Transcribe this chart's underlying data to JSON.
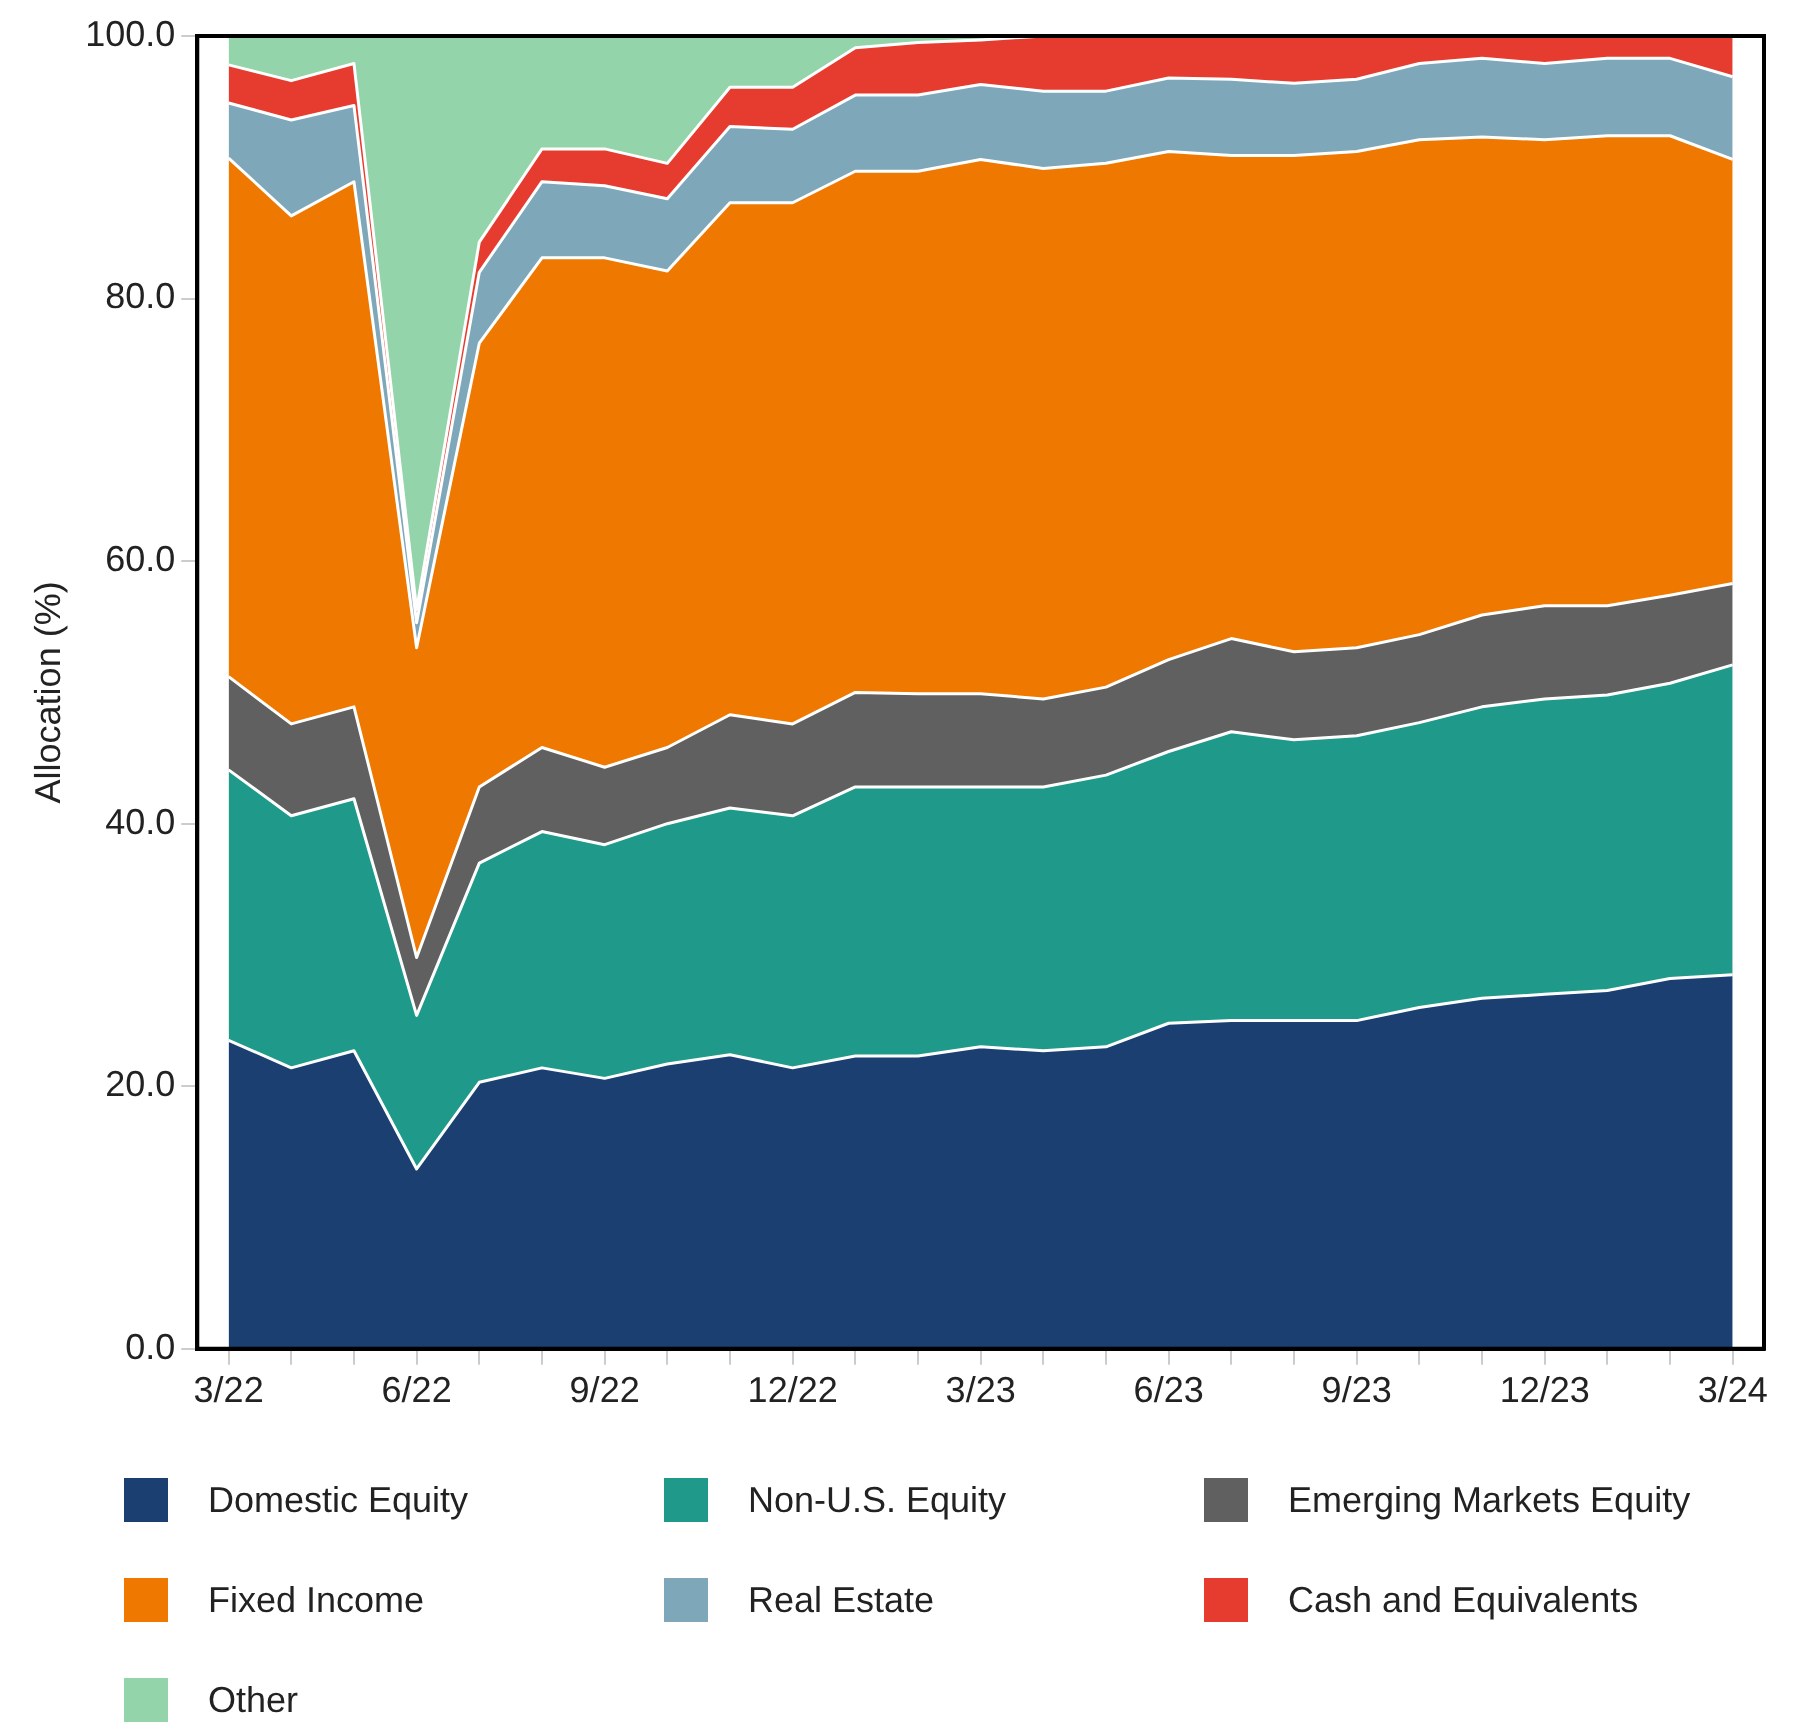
{
  "chart_data": {
    "type": "area",
    "stacked": true,
    "ylabel": "Allocation (%)",
    "categories": [
      "3/22",
      null,
      null,
      "6/22",
      null,
      null,
      "9/22",
      null,
      null,
      "12/22",
      null,
      null,
      "3/23",
      null,
      null,
      "6/23",
      null,
      null,
      "9/23",
      null,
      null,
      "12/23",
      null,
      null,
      "3/24"
    ],
    "ylim": [
      0,
      100
    ],
    "yticks": [
      {
        "value": 0,
        "label": "0.0"
      },
      {
        "value": 20,
        "label": "20.0"
      },
      {
        "value": 40,
        "label": "40.0"
      },
      {
        "value": 60,
        "label": "60.0"
      },
      {
        "value": 80,
        "label": "80.0"
      },
      {
        "value": 100,
        "label": "100.0"
      }
    ],
    "grid": false,
    "legend": "bottom",
    "series": [
      {
        "name": "Domestic Equity",
        "color": "#1a3f70",
        "values": [
          23.5,
          21.4,
          22.7,
          13.7,
          20.3,
          21.4,
          20.6,
          21.7,
          22.4,
          21.4,
          22.3,
          22.3,
          23.0,
          22.7,
          23.0,
          24.8,
          25.0,
          25.0,
          25.0,
          26.0,
          26.7,
          27.0,
          27.3,
          28.2,
          28.5
        ]
      },
      {
        "name": "Non-U.S. Equity",
        "color": "#1f9a8a",
        "values": [
          20.6,
          19.2,
          19.2,
          11.7,
          16.7,
          18.0,
          17.8,
          18.3,
          18.8,
          19.2,
          20.5,
          20.5,
          19.8,
          20.1,
          20.7,
          20.7,
          22.0,
          21.4,
          21.7,
          21.7,
          22.2,
          22.5,
          22.5,
          22.5,
          23.6
        ]
      },
      {
        "name": "Emerging Markets Equity",
        "color": "#606060",
        "values": [
          7.1,
          7.0,
          7.0,
          4.4,
          5.8,
          6.4,
          5.9,
          5.8,
          7.1,
          7.0,
          7.2,
          7.1,
          7.1,
          6.7,
          6.7,
          7.0,
          7.1,
          6.7,
          6.7,
          6.7,
          7.0,
          7.1,
          6.8,
          6.7,
          6.2
        ]
      },
      {
        "name": "Fixed Income",
        "color": "#ee7800",
        "values": [
          39.5,
          38.7,
          40.0,
          23.6,
          33.8,
          37.3,
          38.8,
          36.3,
          39.0,
          39.7,
          39.7,
          39.8,
          40.7,
          40.4,
          39.9,
          38.7,
          36.8,
          37.8,
          37.8,
          37.7,
          36.4,
          35.5,
          35.8,
          35.0,
          32.3
        ]
      },
      {
        "name": "Real Estate",
        "color": "#7ea7ba",
        "values": [
          4.2,
          7.3,
          5.8,
          1.9,
          5.4,
          5.8,
          5.5,
          5.5,
          5.8,
          5.6,
          5.8,
          5.8,
          5.7,
          5.9,
          5.5,
          5.6,
          5.8,
          5.5,
          5.5,
          5.8,
          6.0,
          5.8,
          5.9,
          5.9,
          6.3
        ]
      },
      {
        "name": "Cash and Equivalents",
        "color": "#e63c30",
        "values": [
          2.9,
          3.0,
          3.2,
          1.0,
          2.3,
          2.5,
          2.8,
          2.7,
          3.0,
          3.2,
          3.6,
          4.0,
          3.4,
          4.2,
          4.2,
          3.2,
          3.3,
          3.6,
          3.3,
          2.1,
          1.7,
          2.1,
          1.7,
          1.7,
          3.1
        ]
      },
      {
        "name": "Other",
        "color": "#93d4aa",
        "values": [
          2.2,
          3.4,
          2.1,
          43.7,
          15.7,
          8.6,
          8.6,
          9.7,
          3.9,
          3.9,
          0.9,
          0.5,
          0.3,
          0,
          0,
          0,
          0,
          0,
          0,
          0,
          0,
          0,
          0,
          0,
          0
        ]
      }
    ]
  }
}
